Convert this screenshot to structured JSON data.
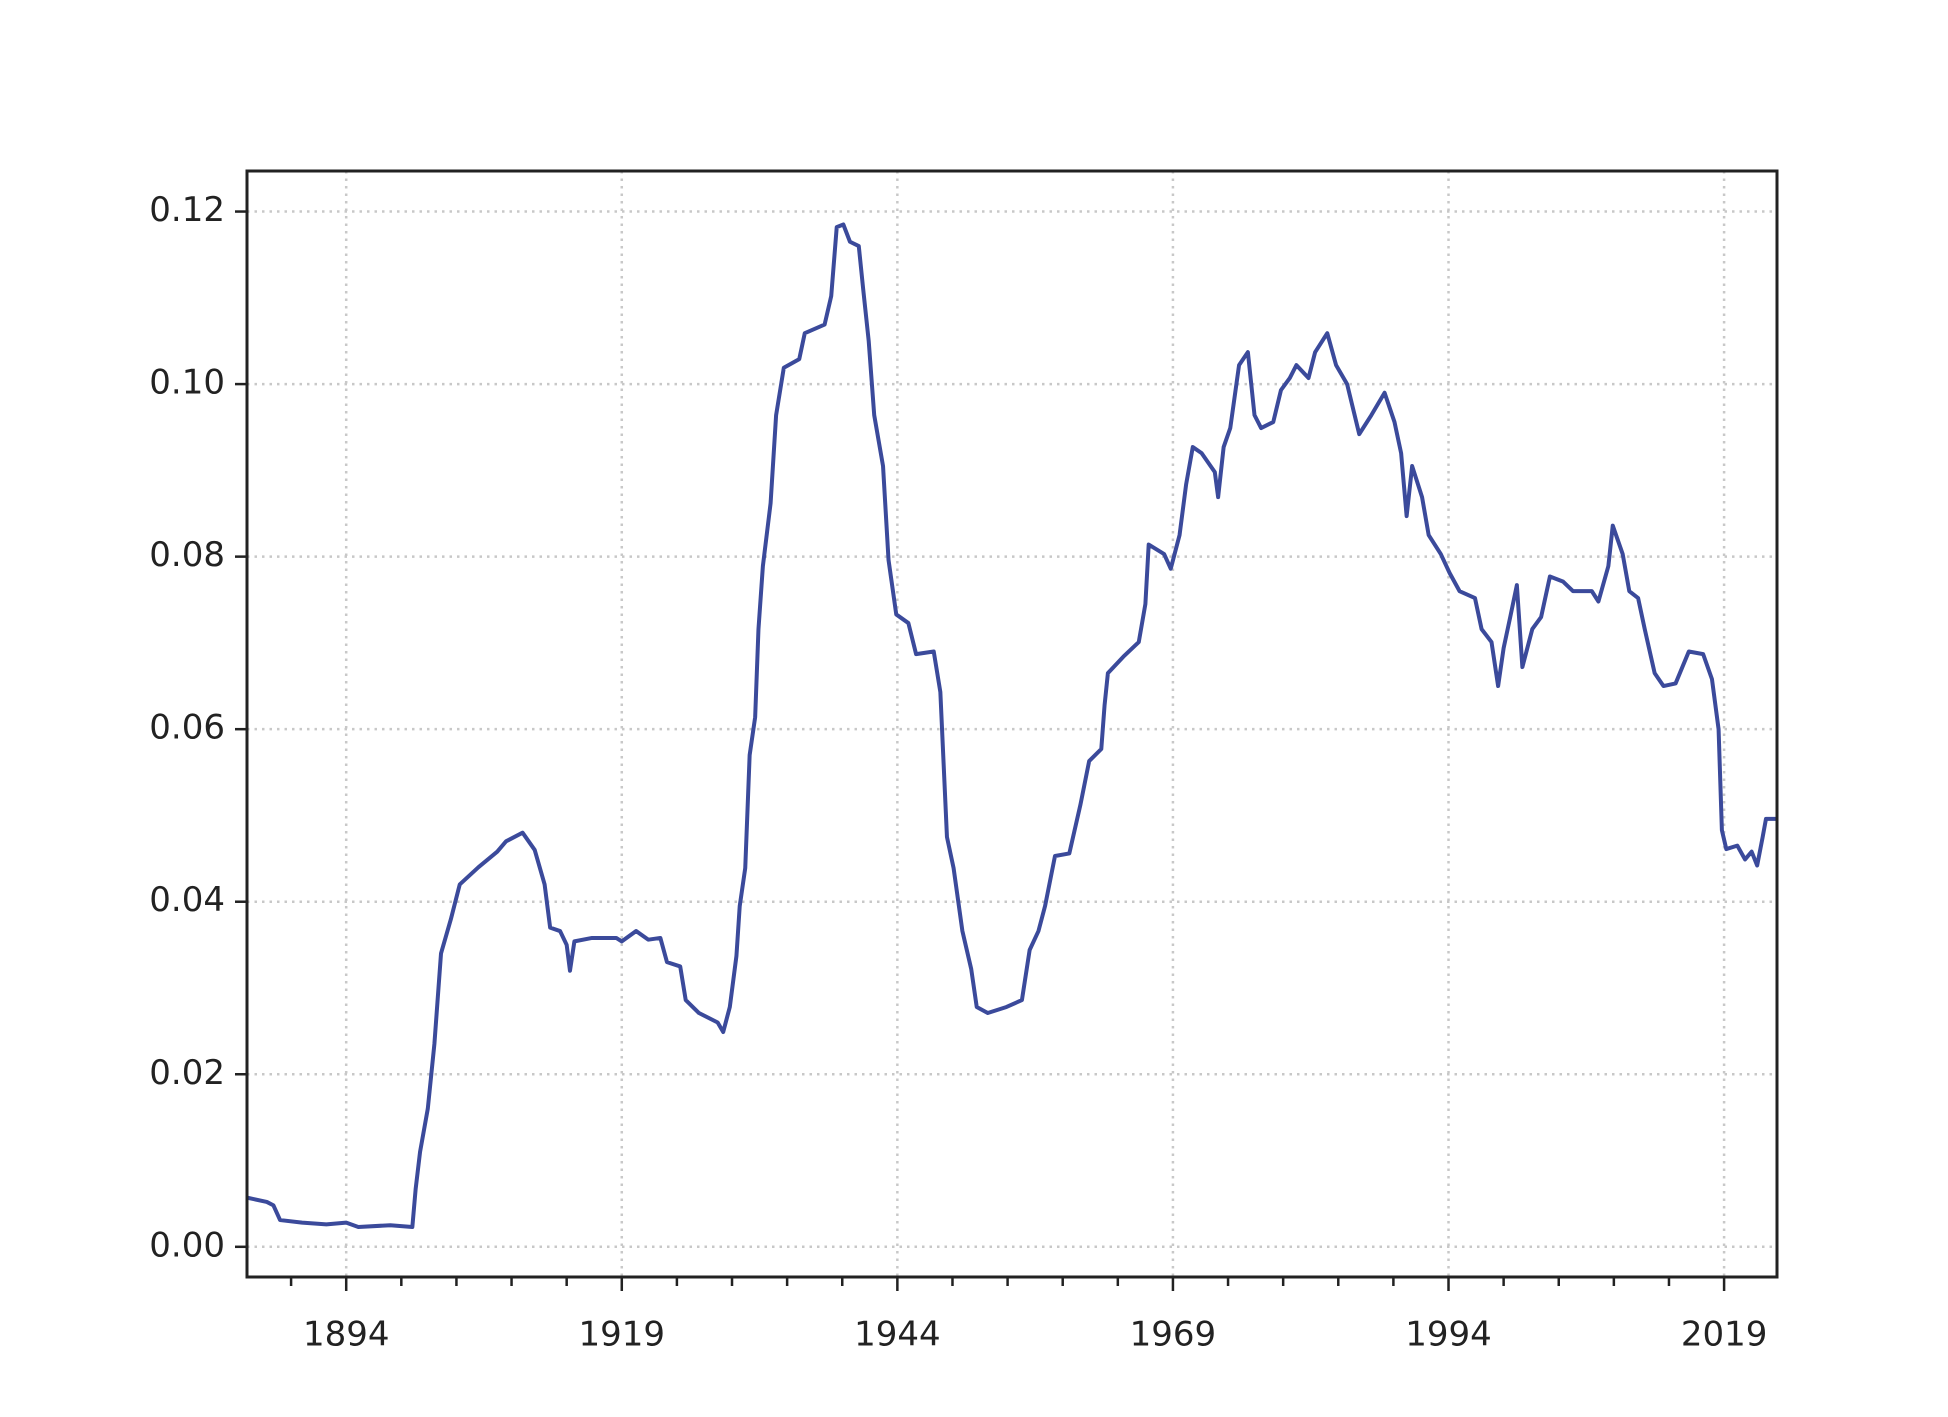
{
  "chart_data": {
    "type": "line",
    "color": "#3b4a9b",
    "grid": true,
    "x": [
      1885,
      1886.8,
      1887.4,
      1888,
      1890,
      1892.2,
      1894,
      1895.1,
      1898,
      1900,
      1900.3,
      1900.7,
      1901.4,
      1902,
      1902.6,
      1903.5,
      1904.3,
      1906,
      1907.7,
      1908.5,
      1910,
      1911.1,
      1912,
      1912.5,
      1913.4,
      1914,
      1914.3,
      1914.7,
      1916.3,
      1918.5,
      1919,
      1920.3,
      1921.4,
      1922.5,
      1923.1,
      1924.3,
      1924.8,
      1926,
      1927.7,
      1928.2,
      1928.8,
      1929.4,
      1929.7,
      1930.2,
      1930.6,
      1931.1,
      1931.4,
      1931.8,
      1932.5,
      1933,
      1933.7,
      1935.1,
      1935.6,
      1937.4,
      1938,
      1938.5,
      1939.1,
      1939.7,
      1940.5,
      1940.9,
      1941.4,
      1941.9,
      1942.7,
      1943.2,
      1943.9,
      1945,
      1945.7,
      1947.3,
      1947.9,
      1948.5,
      1949.1,
      1949.9,
      1950.7,
      1951.2,
      1952.2,
      1953.9,
      1955.3,
      1956,
      1956.8,
      1957.4,
      1958.3,
      1959.6,
      1960.6,
      1961.4,
      1962.5,
      1962.8,
      1963.1,
      1964.5,
      1965.9,
      1966.5,
      1966.8,
      1968.2,
      1968.8,
      1969.6,
      1970.2,
      1970.8,
      1971.6,
      1972.8,
      1973.1,
      1973.6,
      1974.2,
      1975,
      1975.8,
      1976.4,
      1977,
      1978.1,
      1978.8,
      1979.6,
      1980.2,
      1981.3,
      1981.9,
      1983,
      1983.8,
      1984.8,
      1985.9,
      1987,
      1988.2,
      1989.1,
      1989.7,
      1990.2,
      1990.7,
      1991.6,
      1992.2,
      1993.3,
      1994.1,
      1995,
      1996.4,
      1997,
      1997.9,
      1998.5,
      1999,
      1999.6,
      2000.2,
      2000.7,
      2001.6,
      2002.4,
      2003.2,
      2004.4,
      2005.3,
      2007,
      2007.6,
      2008.5,
      2008.9,
      2009.8,
      2010.4,
      2011.2,
      2011.8,
      2012.7,
      2013.5,
      2014.6,
      2015.8,
      2017.1,
      2017.9,
      2018.5,
      2018.8,
      2019.2,
      2020.2,
      2020.9,
      2021.5,
      2022,
      2022.5,
      2022.8,
      2023.8
    ],
    "values": [
      0.0057,
      0.0052,
      0.0048,
      0.0031,
      0.0028,
      0.0026,
      0.0028,
      0.0023,
      0.0025,
      0.0023,
      0.0067,
      0.011,
      0.016,
      0.0235,
      0.034,
      0.038,
      0.042,
      0.044,
      0.0458,
      0.047,
      0.048,
      0.046,
      0.042,
      0.037,
      0.0366,
      0.035,
      0.032,
      0.0354,
      0.0358,
      0.0358,
      0.0354,
      0.0366,
      0.0356,
      0.0358,
      0.033,
      0.0325,
      0.0286,
      0.0271,
      0.026,
      0.0249,
      0.0278,
      0.0337,
      0.0395,
      0.0439,
      0.057,
      0.0614,
      0.0716,
      0.0789,
      0.0862,
      0.0964,
      0.1019,
      0.1029,
      0.1059,
      0.1069,
      0.1102,
      0.1182,
      0.1185,
      0.1165,
      0.116,
      0.111,
      0.105,
      0.0964,
      0.0905,
      0.0796,
      0.0733,
      0.0723,
      0.0687,
      0.069,
      0.0643,
      0.0475,
      0.0439,
      0.0366,
      0.0322,
      0.0278,
      0.0271,
      0.0278,
      0.0286,
      0.0344,
      0.0366,
      0.0395,
      0.0453,
      0.0456,
      0.0512,
      0.0563,
      0.0577,
      0.0628,
      0.0665,
      0.0684,
      0.0701,
      0.0745,
      0.0814,
      0.0803,
      0.0786,
      0.0825,
      0.0884,
      0.0927,
      0.092,
      0.0898,
      0.0869,
      0.0927,
      0.0949,
      0.1022,
      0.1037,
      0.0964,
      0.0949,
      0.0956,
      0.0993,
      0.1007,
      0.1022,
      0.1007,
      0.1037,
      0.1059,
      0.1022,
      0.1,
      0.0942,
      0.0964,
      0.099,
      0.0956,
      0.092,
      0.0847,
      0.0905,
      0.0869,
      0.0825,
      0.0803,
      0.0781,
      0.076,
      0.0752,
      0.0716,
      0.0701,
      0.065,
      0.0694,
      0.073,
      0.0767,
      0.0672,
      0.0716,
      0.073,
      0.0777,
      0.0771,
      0.076,
      0.076,
      0.0748,
      0.0789,
      0.0836,
      0.0803,
      0.076,
      0.0752,
      0.0716,
      0.0665,
      0.065,
      0.0653,
      0.069,
      0.0687,
      0.0658,
      0.06,
      0.0483,
      0.0461,
      0.0465,
      0.0449,
      0.0458,
      0.0442,
      0.0475,
      0.0496,
      0.0496
    ],
    "xlim": [
      1885,
      2023.8
    ],
    "xticks": [
      1894,
      1919,
      1944,
      1969,
      1994,
      2019
    ],
    "xminorticks": [
      1889,
      1899,
      1904,
      1909,
      1914,
      1924,
      1929,
      1934,
      1939,
      1949,
      1954,
      1959,
      1964,
      1974,
      1979,
      1984,
      1989,
      1999,
      2004,
      2009,
      2014
    ],
    "ylim": [
      -0.0035,
      0.1247
    ],
    "yticks": [
      {
        "value": 0,
        "label": "0.00"
      },
      {
        "value": 0.02,
        "label": "0.02"
      },
      {
        "value": 0.04,
        "label": "0.04"
      },
      {
        "value": 0.06,
        "label": "0.06"
      },
      {
        "value": 0.08,
        "label": "0.08"
      },
      {
        "value": 0.1,
        "label": "0.10"
      },
      {
        "value": 0.12,
        "label": "0.12"
      }
    ]
  }
}
